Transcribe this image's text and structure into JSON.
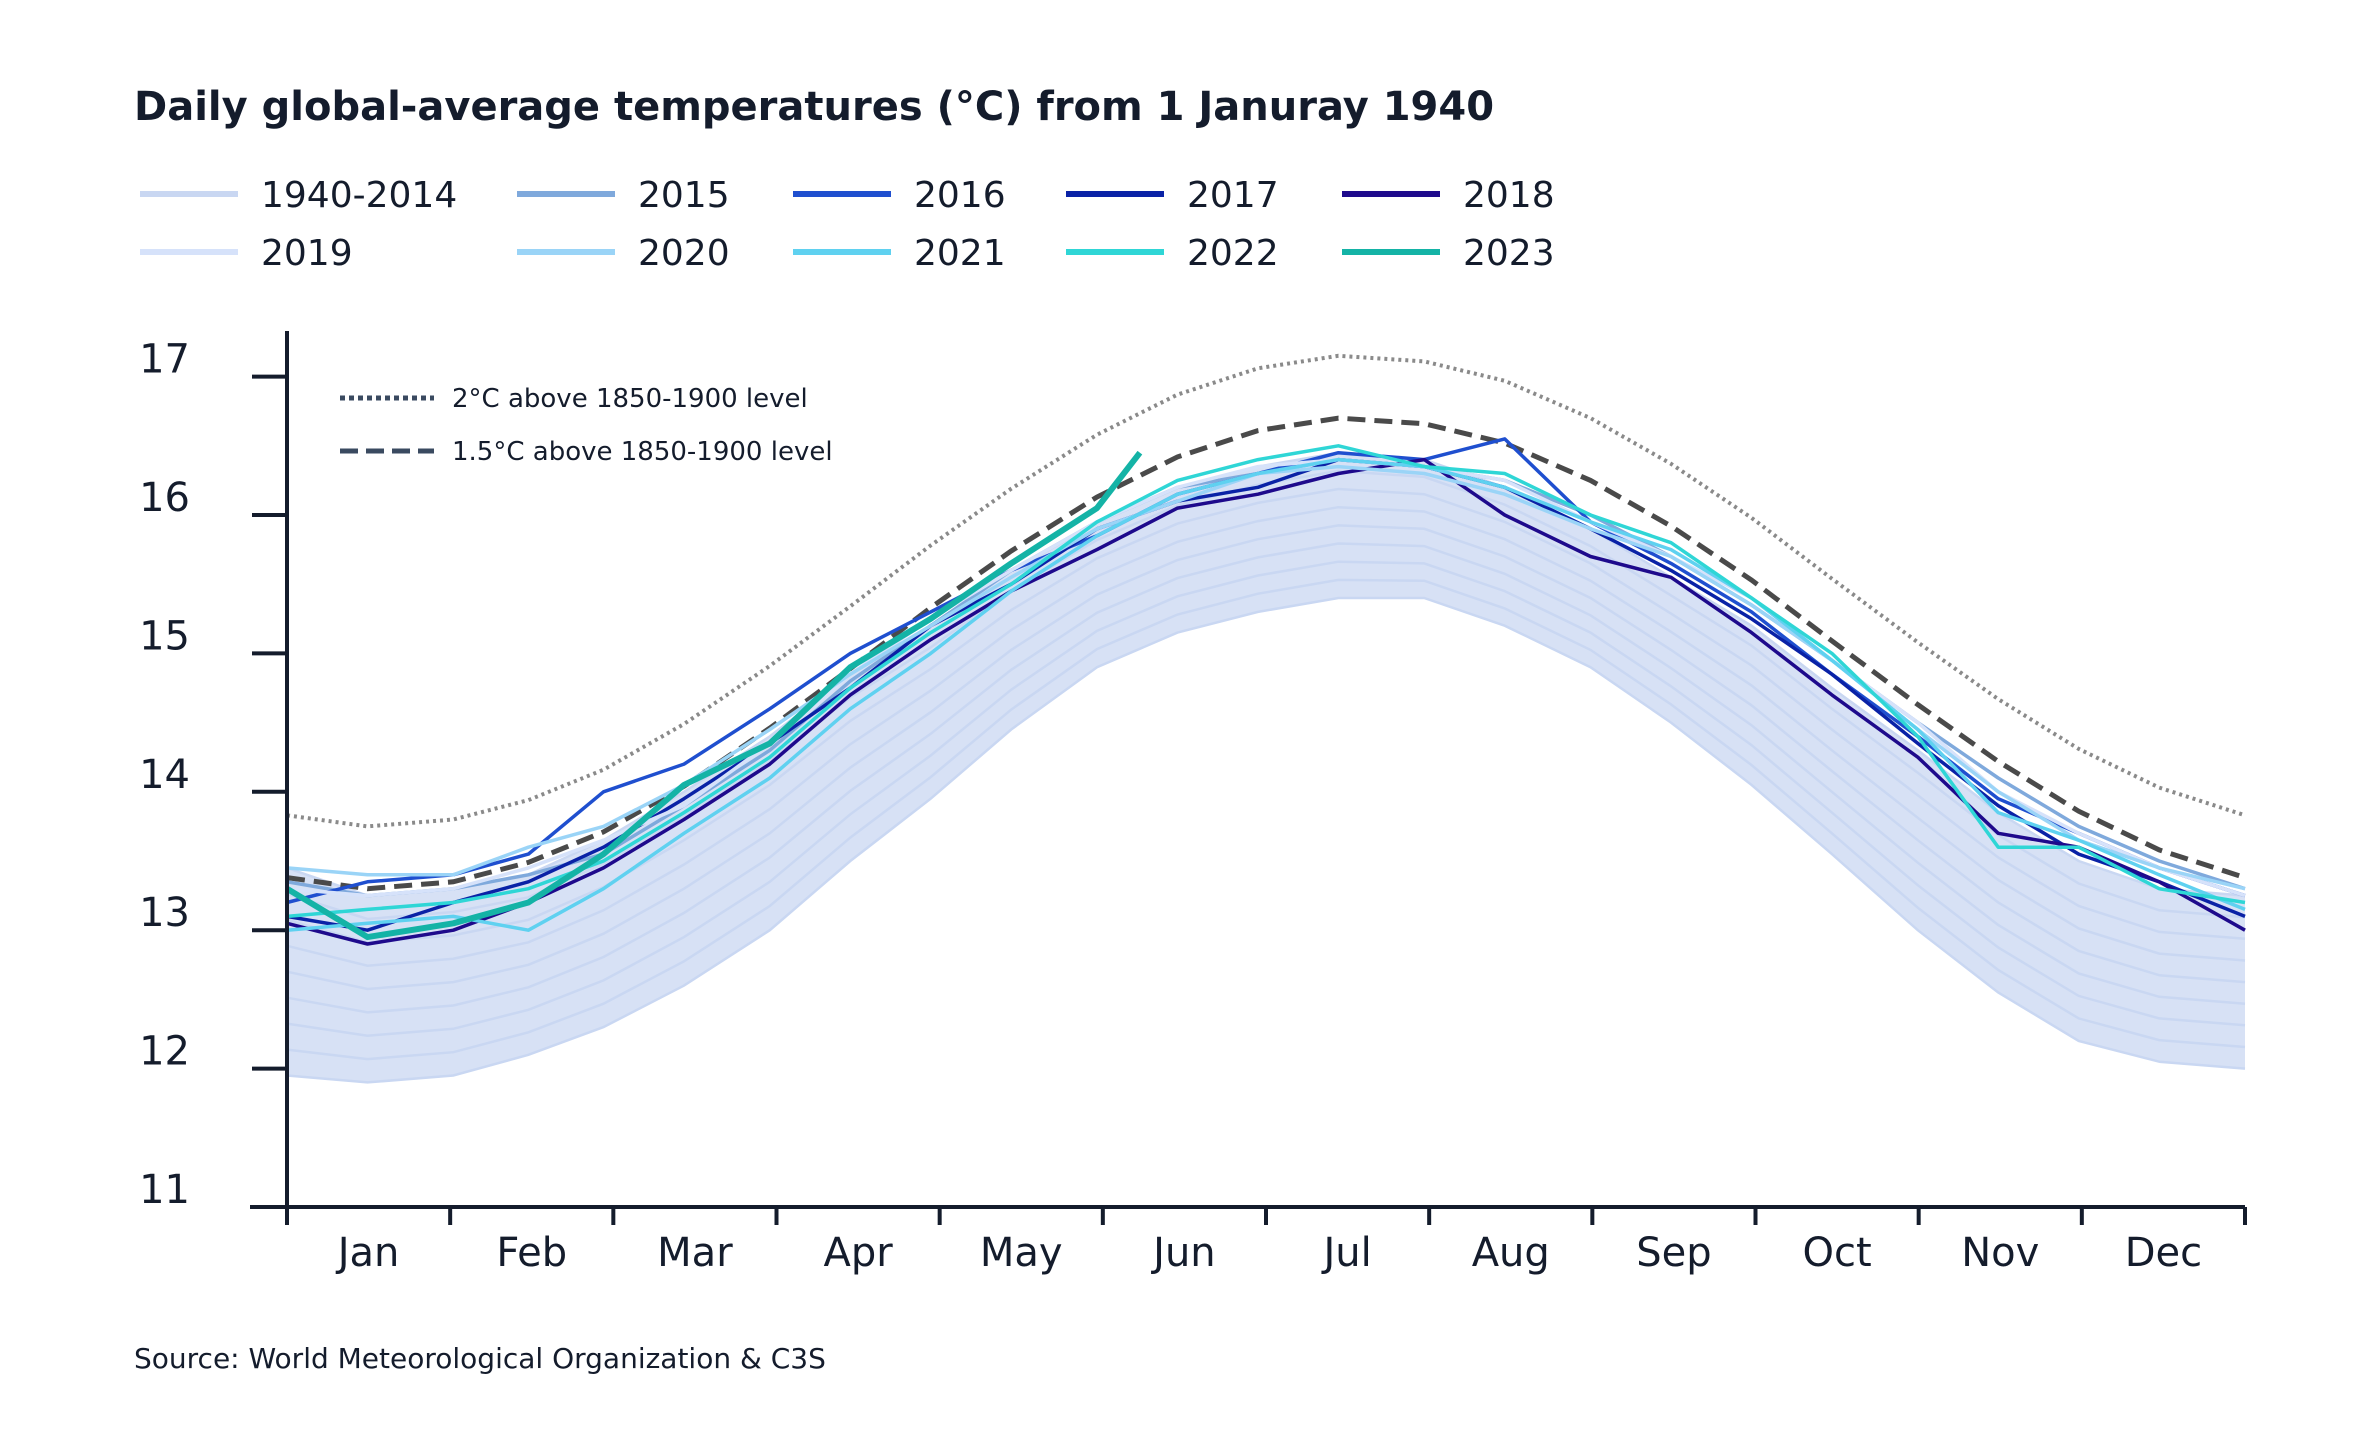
{
  "chart_data": {
    "type": "line",
    "title": "Daily global-average temperatures (°C) from 1 Januray 1940",
    "source": "Source: World Meteorological Organization & C3S",
    "xlabel": "",
    "ylabel": "",
    "ylim": [
      11,
      17
    ],
    "yticks": [
      "11",
      "12",
      "13",
      "14",
      "15",
      "16",
      "17"
    ],
    "xtick_labels": [
      "Jan",
      "Feb",
      "Mar",
      "Apr",
      "May",
      "Jun",
      "Jul",
      "Aug",
      "Sep",
      "Oct",
      "Nov",
      "Dec"
    ],
    "grid": false,
    "legend_position": "top",
    "x_day_of_year": [
      0,
      15,
      31,
      45,
      59,
      74,
      90,
      105,
      120,
      135,
      151,
      166,
      181,
      196,
      212,
      227,
      243,
      258,
      273,
      288,
      304,
      319,
      334,
      349,
      365
    ],
    "band": {
      "name": "1940-2014",
      "color": "#c9d7f2",
      "lower": [
        11.95,
        11.9,
        11.95,
        12.1,
        12.3,
        12.6,
        13.0,
        13.5,
        13.95,
        14.45,
        14.9,
        15.15,
        15.3,
        15.4,
        15.4,
        15.2,
        14.9,
        14.5,
        14.05,
        13.55,
        13.0,
        12.55,
        12.2,
        12.05,
        12.0
      ],
      "upper": [
        13.45,
        13.25,
        13.3,
        13.4,
        13.65,
        14.0,
        14.4,
        14.85,
        15.2,
        15.6,
        15.95,
        16.2,
        16.35,
        16.45,
        16.4,
        16.2,
        15.9,
        15.55,
        15.2,
        14.75,
        14.3,
        13.85,
        13.5,
        13.3,
        13.25
      ]
    },
    "series": [
      {
        "name": "2015",
        "color": "#7fa9dc",
        "values": [
          13.35,
          13.25,
          13.3,
          13.4,
          13.55,
          13.9,
          14.3,
          14.8,
          15.2,
          15.6,
          15.95,
          16.2,
          16.3,
          16.4,
          16.35,
          16.25,
          16.0,
          15.7,
          15.35,
          14.95,
          14.5,
          14.1,
          13.75,
          13.5,
          13.3
        ]
      },
      {
        "name": "2016",
        "color": "#1f4fcf",
        "values": [
          13.2,
          13.35,
          13.4,
          13.55,
          14.0,
          14.2,
          14.6,
          15.0,
          15.3,
          15.6,
          15.85,
          16.15,
          16.3,
          16.45,
          16.4,
          16.55,
          15.95,
          15.65,
          15.3,
          14.85,
          14.4,
          13.95,
          13.7,
          13.45,
          13.25
        ]
      },
      {
        "name": "2017",
        "color": "#0a22a6",
        "values": [
          13.1,
          13.0,
          13.2,
          13.35,
          13.6,
          13.95,
          14.35,
          14.75,
          15.2,
          15.5,
          15.9,
          16.1,
          16.2,
          16.4,
          16.35,
          16.2,
          15.9,
          15.6,
          15.25,
          14.85,
          14.35,
          13.9,
          13.55,
          13.35,
          13.1
        ]
      },
      {
        "name": "2018",
        "color": "#1e0a8c",
        "values": [
          13.05,
          12.9,
          13.0,
          13.2,
          13.45,
          13.8,
          14.2,
          14.7,
          15.1,
          15.45,
          15.75,
          16.05,
          16.15,
          16.3,
          16.4,
          16.0,
          15.7,
          15.55,
          15.15,
          14.7,
          14.25,
          13.7,
          13.6,
          13.35,
          13.0
        ]
      },
      {
        "name": "2019",
        "color": "#d6e2fa",
        "values": [
          13.3,
          13.25,
          13.3,
          13.45,
          13.65,
          13.9,
          14.35,
          14.85,
          15.25,
          15.6,
          15.95,
          16.2,
          16.35,
          16.4,
          16.35,
          16.25,
          15.95,
          15.7,
          15.4,
          14.95,
          14.5,
          14.0,
          13.7,
          13.45,
          13.25
        ]
      },
      {
        "name": "2020",
        "color": "#9ad4f7",
        "values": [
          13.45,
          13.4,
          13.4,
          13.6,
          13.75,
          14.05,
          14.45,
          14.85,
          15.2,
          15.55,
          15.9,
          16.1,
          16.3,
          16.35,
          16.3,
          16.15,
          15.9,
          15.7,
          15.35,
          14.95,
          14.45,
          14.0,
          13.65,
          13.45,
          13.3
        ]
      },
      {
        "name": "2021",
        "color": "#5fd1f0",
        "values": [
          13.0,
          13.05,
          13.1,
          13.0,
          13.3,
          13.7,
          14.1,
          14.6,
          15.0,
          15.45,
          15.85,
          16.15,
          16.3,
          16.4,
          16.35,
          16.2,
          15.95,
          15.75,
          15.4,
          14.95,
          14.45,
          13.85,
          13.65,
          13.4,
          13.15
        ]
      },
      {
        "name": "2022",
        "color": "#2fd6d6",
        "values": [
          13.1,
          13.15,
          13.2,
          13.3,
          13.5,
          13.85,
          14.25,
          14.75,
          15.15,
          15.5,
          15.95,
          16.25,
          16.4,
          16.5,
          16.35,
          16.3,
          16.0,
          15.8,
          15.4,
          15.0,
          14.4,
          13.6,
          13.6,
          13.3,
          13.2
        ]
      },
      {
        "name": "2023",
        "color": "#14b3a6",
        "x_day_of_year": [
          0,
          15,
          31,
          45,
          59,
          74,
          90,
          105,
          120,
          135,
          151,
          159
        ],
        "values": [
          13.3,
          12.95,
          13.05,
          13.2,
          13.55,
          14.05,
          14.35,
          14.9,
          15.25,
          15.65,
          16.05,
          16.45
        ]
      }
    ],
    "thresholds": [
      {
        "name": "2°C above 1850-1900 level",
        "style": "dotted",
        "color": "#8a8a8a",
        "values": [
          13.83,
          13.75,
          13.8,
          13.94,
          14.16,
          14.49,
          14.91,
          15.34,
          15.78,
          16.19,
          16.58,
          16.87,
          17.06,
          17.15,
          17.11,
          16.97,
          16.7,
          16.37,
          15.98,
          15.54,
          15.08,
          14.67,
          14.31,
          14.03,
          13.83
        ]
      },
      {
        "name": "1.5°C above 1850-1900 level",
        "style": "dashed",
        "color": "#4a4a4a",
        "values": [
          13.38,
          13.3,
          13.35,
          13.49,
          13.71,
          14.04,
          14.46,
          14.89,
          15.33,
          15.74,
          16.13,
          16.42,
          16.61,
          16.7,
          16.66,
          16.52,
          16.25,
          15.92,
          15.53,
          15.09,
          14.63,
          14.22,
          13.86,
          13.58,
          13.38
        ]
      }
    ]
  }
}
